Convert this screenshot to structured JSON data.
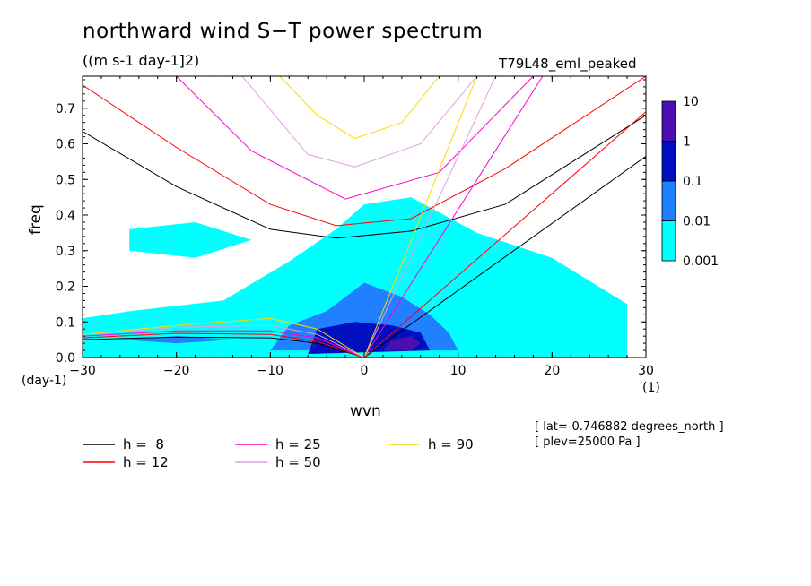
{
  "title": "northward wind S−T power spectrum",
  "units": "((m s-1 day-1]2)",
  "run_label": "T79L48_eml_peaked",
  "meta": {
    "lat": "[ lat=-0.746882 degrees_north ]",
    "plev": "[ plev=25000 Pa ]"
  },
  "chart_data": {
    "type": "heatmap",
    "title": "northward wind S−T power spectrum",
    "subtitle": "((m s-1 day-1]2)",
    "xlabel": "wvn",
    "x_unit": "(1)",
    "ylabel": "freq",
    "y_unit": "(day-1)",
    "xlim": [
      -30,
      30
    ],
    "ylim": [
      0,
      0.79
    ],
    "x_ticks": [
      -30,
      -20,
      -10,
      0,
      10,
      20,
      30
    ],
    "x_tick_labels": [
      "−30",
      "−20",
      "−10",
      "0",
      "10",
      "20",
      "30"
    ],
    "y_ticks": [
      0,
      0.1,
      0.2,
      0.3,
      0.4,
      0.5,
      0.6,
      0.7
    ],
    "y_tick_labels": [
      "0.0",
      "0.1",
      "0.2",
      "0.3",
      "0.4",
      "0.5",
      "0.6",
      "0.7"
    ],
    "colorbar": {
      "levels": [
        0.001,
        0.01,
        0.1,
        1,
        10
      ],
      "labels": [
        "0.001",
        "0.01",
        "0.1",
        "1",
        "10"
      ],
      "colors": [
        "#00ffff",
        "#2080ff",
        "#0010c0",
        "#4b0fb0"
      ]
    },
    "contour_regions": [
      {
        "level": "0.001",
        "color": "#00ffff",
        "polygon": [
          [
            -30,
            0
          ],
          [
            -30,
            0.11
          ],
          [
            -25,
            0.13
          ],
          [
            -15,
            0.16
          ],
          [
            -8,
            0.27
          ],
          [
            -3,
            0.36
          ],
          [
            0,
            0.43
          ],
          [
            5,
            0.45
          ],
          [
            12,
            0.35
          ],
          [
            20,
            0.28
          ],
          [
            28,
            0.15
          ],
          [
            28,
            0
          ],
          [
            30,
            0
          ]
        ]
      },
      {
        "level": "0.001",
        "color": "#00ffff",
        "polygon": [
          [
            -25,
            0.36
          ],
          [
            -18,
            0.38
          ],
          [
            -12,
            0.33
          ],
          [
            -18,
            0.28
          ],
          [
            -25,
            0.3
          ]
        ]
      },
      {
        "level": "0.01",
        "color": "#2080ff",
        "polygon": [
          [
            -10,
            0.02
          ],
          [
            -8,
            0.09
          ],
          [
            -4,
            0.13
          ],
          [
            0,
            0.21
          ],
          [
            4,
            0.17
          ],
          [
            7,
            0.12
          ],
          [
            9,
            0.07
          ],
          [
            10,
            0.02
          ]
        ]
      },
      {
        "level": "0.01",
        "color": "#2080ff",
        "polygon": [
          [
            -26,
            0.05
          ],
          [
            -20,
            0.06
          ],
          [
            -14,
            0.05
          ],
          [
            -20,
            0.04
          ]
        ]
      },
      {
        "level": "0.1",
        "color": "#0010c0",
        "polygon": [
          [
            -6,
            0.01
          ],
          [
            -5,
            0.08
          ],
          [
            -1,
            0.1
          ],
          [
            3,
            0.09
          ],
          [
            6,
            0.07
          ],
          [
            7,
            0.02
          ]
        ]
      },
      {
        "level": "1",
        "color": "#4b0fb0",
        "polygon": [
          [
            2,
            0.02
          ],
          [
            3,
            0.05
          ],
          [
            5,
            0.06
          ],
          [
            6,
            0.04
          ],
          [
            5,
            0.02
          ]
        ]
      }
    ],
    "dispersion_curves": [
      {
        "name": "h =  8",
        "depth": 8,
        "color": "#000000",
        "families": [
          {
            "name": "kelvin",
            "points": [
              [
                0,
                0
              ],
              [
                30,
                0.565
              ]
            ]
          },
          {
            "name": "n=1 inertia-gravity",
            "points": [
              [
                -30,
                0.635
              ],
              [
                -20,
                0.48
              ],
              [
                -10,
                0.36
              ],
              [
                -3,
                0.335
              ],
              [
                5,
                0.355
              ],
              [
                15,
                0.43
              ],
              [
                30,
                0.68
              ]
            ]
          },
          {
            "name": "rossby",
            "points": [
              [
                -30,
                0.05
              ],
              [
                -20,
                0.057
              ],
              [
                -10,
                0.055
              ],
              [
                -5,
                0.04
              ],
              [
                0,
                0
              ]
            ]
          }
        ]
      },
      {
        "name": "h = 12",
        "depth": 12,
        "color": "#ff0000",
        "families": [
          {
            "name": "kelvin",
            "points": [
              [
                0,
                0
              ],
              [
                30,
                0.69
              ]
            ]
          },
          {
            "name": "n=1 inertia-gravity",
            "points": [
              [
                -30,
                0.765
              ],
              [
                -20,
                0.59
              ],
              [
                -10,
                0.43
              ],
              [
                -3,
                0.37
              ],
              [
                5,
                0.39
              ],
              [
                15,
                0.53
              ],
              [
                30,
                0.79
              ]
            ]
          },
          {
            "name": "rossby",
            "points": [
              [
                -30,
                0.055
              ],
              [
                -20,
                0.068
              ],
              [
                -10,
                0.065
              ],
              [
                -5,
                0.045
              ],
              [
                0,
                0
              ]
            ]
          }
        ]
      },
      {
        "name": "h = 25",
        "depth": 25,
        "color": "#ff00cc",
        "families": [
          {
            "name": "kelvin",
            "points": [
              [
                0,
                0
              ],
              [
                19,
                0.79
              ]
            ]
          },
          {
            "name": "n=1 inertia-gravity",
            "points": [
              [
                -20,
                0.79
              ],
              [
                -12,
                0.58
              ],
              [
                -2,
                0.445
              ],
              [
                8,
                0.52
              ],
              [
                18,
                0.79
              ]
            ]
          },
          {
            "name": "rossby",
            "points": [
              [
                -30,
                0.06
              ],
              [
                -20,
                0.075
              ],
              [
                -10,
                0.075
              ],
              [
                -5,
                0.055
              ],
              [
                0,
                0
              ]
            ]
          }
        ]
      },
      {
        "name": "h = 50",
        "depth": 50,
        "color": "#e0a0e0",
        "families": [
          {
            "name": "kelvin",
            "points": [
              [
                0,
                0
              ],
              [
                14,
                0.79
              ]
            ]
          },
          {
            "name": "n=1 inertia-gravity",
            "points": [
              [
                -13,
                0.79
              ],
              [
                -6,
                0.57
              ],
              [
                -1,
                0.535
              ],
              [
                6,
                0.6
              ],
              [
                12,
                0.79
              ]
            ]
          },
          {
            "name": "rossby",
            "points": [
              [
                -30,
                0.065
              ],
              [
                -20,
                0.085
              ],
              [
                -10,
                0.09
              ],
              [
                -5,
                0.065
              ],
              [
                0,
                0
              ]
            ]
          }
        ]
      },
      {
        "name": "h = 90",
        "depth": 90,
        "color": "#ffd700",
        "families": [
          {
            "name": "kelvin",
            "points": [
              [
                0,
                0
              ],
              [
                12,
                0.79
              ]
            ]
          },
          {
            "name": "n=1 inertia-gravity",
            "points": [
              [
                -9,
                0.79
              ],
              [
                -5,
                0.68
              ],
              [
                -1,
                0.615
              ],
              [
                4,
                0.66
              ],
              [
                8,
                0.79
              ]
            ]
          },
          {
            "name": "rossby",
            "points": [
              [
                -30,
                0.065
              ],
              [
                -20,
                0.09
              ],
              [
                -10,
                0.11
              ],
              [
                -5,
                0.08
              ],
              [
                0,
                0
              ]
            ]
          }
        ]
      }
    ],
    "legend": {
      "placement": "bottom-left",
      "entries": [
        {
          "label": "h =  8",
          "color": "#000000"
        },
        {
          "label": "h = 12",
          "color": "#ff0000"
        },
        {
          "label": "h = 25",
          "color": "#ff00cc"
        },
        {
          "label": "h = 50",
          "color": "#e0a0e0"
        },
        {
          "label": "h = 90",
          "color": "#ffd700"
        }
      ]
    }
  }
}
